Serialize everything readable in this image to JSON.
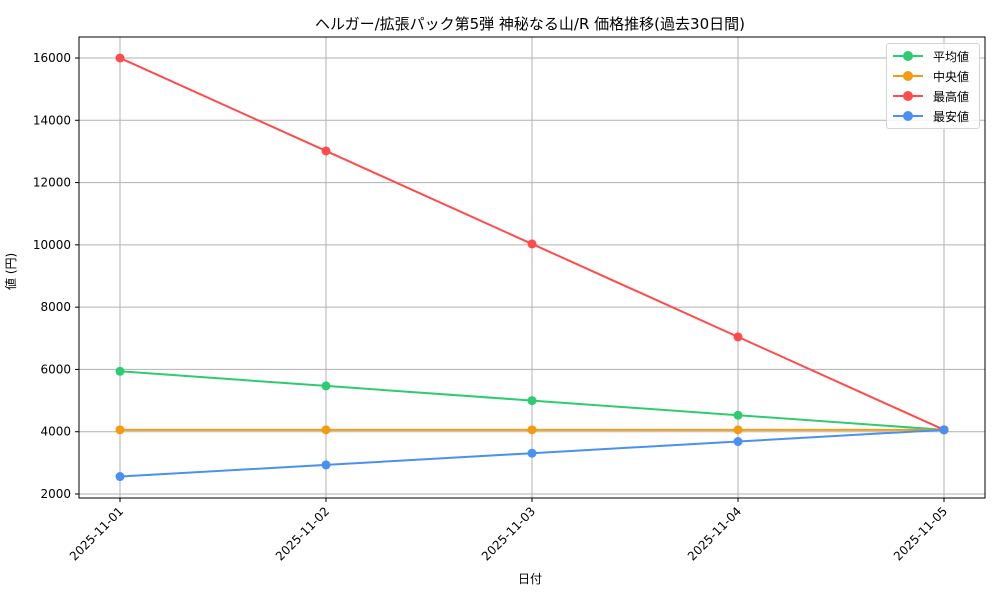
{
  "chart_data": {
    "type": "line",
    "title": "ヘルガー/拡張パック第5弾 神秘なる山/R 価格推移(過去30日間)",
    "xlabel": "日付",
    "ylabel": "値 (円)",
    "x": [
      "2025-11-01",
      "2025-11-02",
      "2025-11-03",
      "2025-11-04",
      "2025-11-05"
    ],
    "yticks": [
      2000,
      4000,
      6000,
      8000,
      10000,
      12000,
      14000,
      16000
    ],
    "ylim": [
      1850,
      16650
    ],
    "grid": true,
    "legend_position": "upper right",
    "series": [
      {
        "name": "平均値",
        "color": "#2ecc71",
        "values": [
          5940,
          5470,
          5000,
          4530,
          4060
        ]
      },
      {
        "name": "中央値",
        "color": "#f39c12",
        "values": [
          4060,
          4060,
          4060,
          4060,
          4060
        ]
      },
      {
        "name": "最高値",
        "color": "#ff4b4b",
        "values": [
          16000,
          13015,
          10030,
          7045,
          4060
        ]
      },
      {
        "name": "最安値",
        "color": "#4a90f2",
        "values": [
          2560,
          2935,
          3310,
          3685,
          4060
        ]
      }
    ]
  }
}
